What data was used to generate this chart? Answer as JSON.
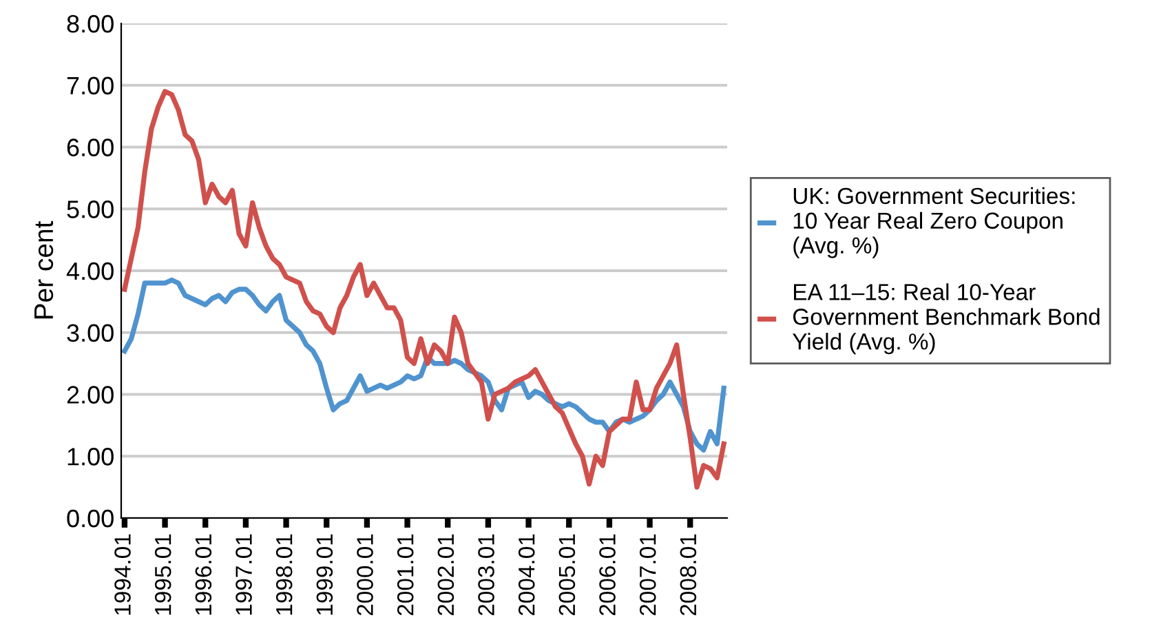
{
  "chart_data": {
    "type": "line",
    "ylabel": "Per cent",
    "ylim": [
      0,
      8
    ],
    "yticks": [
      {
        "value": 0,
        "label": "0.00"
      },
      {
        "value": 1,
        "label": "1.00"
      },
      {
        "value": 2,
        "label": "2.00"
      },
      {
        "value": 3,
        "label": "3.00"
      },
      {
        "value": 4,
        "label": "4.00"
      },
      {
        "value": 5,
        "label": "5.00"
      },
      {
        "value": 6,
        "label": "6.00"
      },
      {
        "value": 7,
        "label": "7.00"
      },
      {
        "value": 8,
        "label": "8.00"
      }
    ],
    "categories": [
      "1994.01",
      null,
      null,
      null,
      null,
      null,
      "1995.01",
      null,
      null,
      null,
      null,
      null,
      "1996.01",
      null,
      null,
      null,
      null,
      null,
      "1997.01",
      null,
      null,
      null,
      null,
      null,
      "1998.01",
      null,
      null,
      null,
      null,
      null,
      "1999.01",
      null,
      null,
      null,
      null,
      null,
      "2000.01",
      null,
      null,
      null,
      null,
      null,
      "2001.01",
      null,
      null,
      null,
      null,
      null,
      "2002.01",
      null,
      null,
      null,
      null,
      null,
      "2003.01",
      null,
      null,
      null,
      null,
      null,
      "2004.01",
      null,
      null,
      null,
      null,
      null,
      "2005.01",
      null,
      null,
      null,
      null,
      null,
      "2006.01",
      null,
      null,
      null,
      null,
      null,
      "2007.01",
      null,
      null,
      null,
      null,
      null,
      "2008.01",
      null,
      null,
      null,
      null,
      null
    ],
    "grid": "y",
    "legend": "right",
    "marker": "none",
    "line_style": "solid",
    "series": [
      {
        "name": "UK: Government Securities:\n10 Year Real Zero Coupon\n(Avg. %)",
        "color": "#4f93cf",
        "values": [
          2.7,
          2.9,
          3.3,
          3.8,
          3.8,
          3.8,
          3.8,
          3.85,
          3.8,
          3.6,
          3.55,
          3.5,
          3.45,
          3.55,
          3.6,
          3.5,
          3.65,
          3.7,
          3.7,
          3.6,
          3.45,
          3.35,
          3.5,
          3.6,
          3.2,
          3.1,
          3.0,
          2.8,
          2.7,
          2.5,
          2.1,
          1.75,
          1.85,
          1.9,
          2.1,
          2.3,
          2.05,
          2.1,
          2.15,
          2.1,
          2.15,
          2.2,
          2.3,
          2.25,
          2.3,
          2.6,
          2.5,
          2.5,
          2.5,
          2.55,
          2.5,
          2.4,
          2.35,
          2.3,
          2.2,
          1.9,
          1.75,
          2.1,
          2.15,
          2.2,
          1.95,
          2.05,
          2.0,
          1.9,
          1.85,
          1.8,
          1.85,
          1.8,
          1.7,
          1.6,
          1.55,
          1.55,
          1.4,
          1.55,
          1.6,
          1.55,
          1.6,
          1.65,
          1.75,
          1.9,
          2.0,
          2.2,
          2.0,
          1.8,
          1.4,
          1.2,
          1.1,
          1.4,
          1.2,
          2.1
        ]
      },
      {
        "name": "EA 11–15: Real 10-Year\nGovernment Benchmark Bond\nYield (Avg. %)",
        "color": "#d0504c",
        "values": [
          3.7,
          4.2,
          4.7,
          5.6,
          6.3,
          6.65,
          6.9,
          6.85,
          6.6,
          6.2,
          6.1,
          5.8,
          5.1,
          5.4,
          5.2,
          5.1,
          5.3,
          4.6,
          4.4,
          5.1,
          4.7,
          4.4,
          4.2,
          4.1,
          3.9,
          3.85,
          3.8,
          3.5,
          3.35,
          3.3,
          3.1,
          3.0,
          3.4,
          3.6,
          3.9,
          4.1,
          3.6,
          3.8,
          3.6,
          3.4,
          3.4,
          3.2,
          2.6,
          2.5,
          2.9,
          2.5,
          2.8,
          2.7,
          2.5,
          3.25,
          3.0,
          2.5,
          2.35,
          2.2,
          1.6,
          2.0,
          2.05,
          2.1,
          2.2,
          2.25,
          2.3,
          2.4,
          2.2,
          2.0,
          1.8,
          1.7,
          1.45,
          1.2,
          1.0,
          0.55,
          1.0,
          0.85,
          1.4,
          1.5,
          1.6,
          1.6,
          2.2,
          1.75,
          1.75,
          2.1,
          2.3,
          2.5,
          2.8,
          2.0,
          1.3,
          0.5,
          0.85,
          0.8,
          0.65,
          1.2
        ]
      }
    ]
  }
}
